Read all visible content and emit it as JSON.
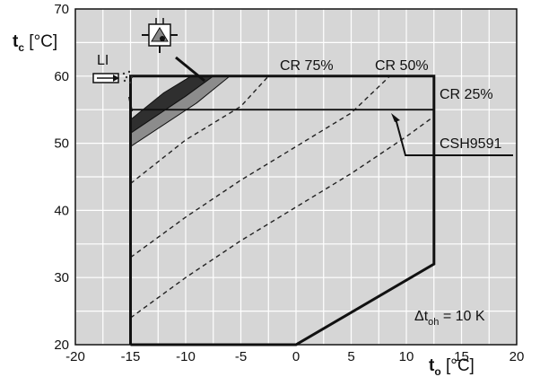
{
  "chart_data": {
    "type": "line",
    "title": "",
    "xlabel": {
      "main": "t",
      "sub": "o",
      "unit": " [°C]"
    },
    "ylabel": {
      "main": "t",
      "sub": "c",
      "unit": " [°C]"
    },
    "xlim": [
      -20,
      20
    ],
    "ylim": [
      20,
      70
    ],
    "x_ticks": [
      -20,
      -15,
      -10,
      -5,
      0,
      5,
      10,
      15,
      20
    ],
    "y_ticks": [
      20,
      30,
      40,
      50,
      60,
      70
    ],
    "grid": true,
    "background_color": "#d6d6d6",
    "envelope": {
      "name": "CSH9591",
      "points": [
        [
          -15,
          20
        ],
        [
          0,
          20
        ],
        [
          12.5,
          32
        ],
        [
          12.5,
          60
        ],
        [
          -15,
          60
        ],
        [
          -15,
          20
        ]
      ]
    },
    "inner_limit_line": {
      "points": [
        [
          -15,
          55
        ],
        [
          12.5,
          55
        ]
      ]
    },
    "cr_lines": [
      {
        "name": "CR 25%",
        "points": [
          [
            -15,
            24
          ],
          [
            -10,
            30
          ],
          [
            -5,
            35.5
          ],
          [
            0,
            40.5
          ],
          [
            5,
            45.5
          ],
          [
            10,
            51
          ],
          [
            12.5,
            54
          ]
        ]
      },
      {
        "name": "CR 50%",
        "points": [
          [
            -15,
            33
          ],
          [
            -10,
            39
          ],
          [
            -5,
            44.5
          ],
          [
            0,
            49.5
          ],
          [
            5,
            54.5
          ],
          [
            8.5,
            60
          ]
        ]
      },
      {
        "name": "CR 75%",
        "points": [
          [
            -15,
            44
          ],
          [
            -10,
            50.5
          ],
          [
            -5,
            55.5
          ],
          [
            -2.5,
            60
          ]
        ]
      }
    ],
    "shaded_regions": [
      {
        "name": "LI",
        "color": "#2f2f2f",
        "points": [
          [
            -15,
            53.5
          ],
          [
            -12,
            57.5
          ],
          [
            -9.5,
            60
          ],
          [
            -7.5,
            60
          ],
          [
            -10,
            57
          ],
          [
            -15,
            51.5
          ]
        ]
      },
      {
        "name": "injection",
        "color": "#8c8c8c",
        "points": [
          [
            -15,
            51.5
          ],
          [
            -10,
            57
          ],
          [
            -7.5,
            60
          ],
          [
            -6,
            60
          ],
          [
            -9,
            56
          ],
          [
            -15,
            49.5
          ]
        ]
      }
    ],
    "labels": {
      "li": "LI",
      "cr75": "CR 75%",
      "cr50": "CR 50%",
      "cr25": "CR  25%",
      "csh": "CSH9591",
      "dt_main": "Δt",
      "dt_sub": "oh",
      "dt_val": " = 10 K"
    }
  }
}
